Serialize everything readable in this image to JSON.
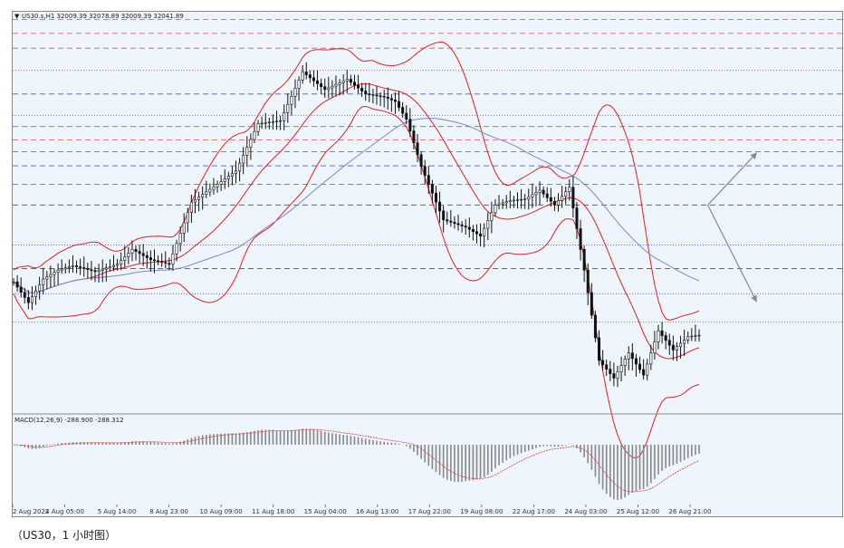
{
  "main_info": "US30.s,H1  32009.39 32078.89 32009.39 32041.89",
  "macd_info": "MACD(12,26,9) -288.900 -288.312",
  "caption": "（US30，1 小时图）",
  "colors": {
    "background": "#eef5fc",
    "candle": "#111111",
    "bollinger": "#e02020",
    "moving_average": "#7a86d8",
    "level_red": "#e05050",
    "level_blue": "#4a5ad8",
    "level_dark": "#555555",
    "projection_arrow": "#8a8a8a",
    "macd_histogram": "#888888",
    "macd_signal": "#d04040"
  },
  "chart_data": {
    "type": "line",
    "symbol": "US30.s",
    "timeframe": "H1",
    "ohlc_readout": {
      "open": 32009.39,
      "high": 32078.89,
      "low": 32009.39,
      "close": 32041.89
    },
    "x_tick_labels": [
      "2 Aug 2022",
      "4 Aug 05:00",
      "5 Aug 14:00",
      "8 Aug 23:00",
      "10 Aug 09:00",
      "11 Aug 18:00",
      "15 Aug 04:00",
      "16 Aug 13:00",
      "17 Aug 22:00",
      "19 Aug 08:00",
      "22 Aug 17:00",
      "24 Aug 03:00",
      "25 Aug 12:00",
      "26 Aug 21:00"
    ],
    "x_index_range": [
      0,
      185
    ],
    "ylim": [
      31900,
      34600
    ],
    "price_anchors": {
      "index": [
        0,
        4,
        8,
        12,
        16,
        22,
        28,
        32,
        37,
        42,
        48,
        55,
        60,
        66,
        72,
        78,
        84,
        90,
        95,
        100,
        103,
        106,
        110,
        116,
        122,
        126,
        130,
        134,
        138,
        142,
        146,
        150,
        154,
        158,
        162,
        166,
        170,
        174,
        178,
        182,
        185
      ],
      "close": [
        32780,
        32640,
        32800,
        32860,
        32890,
        32850,
        32900,
        33000,
        32930,
        32900,
        33320,
        33440,
        33530,
        33850,
        33870,
        34200,
        34080,
        34150,
        34050,
        34030,
        34000,
        33880,
        33560,
        33200,
        33150,
        33090,
        33300,
        33330,
        33340,
        33400,
        33300,
        33420,
        32860,
        32250,
        32130,
        32300,
        32150,
        32450,
        32320,
        32410,
        32420
      ]
    },
    "bollinger_period": 20,
    "bollinger_k": 2,
    "moving_average_period": 60,
    "horizontal_levels": [
      {
        "price": 34555,
        "color": "red",
        "style": "dashed"
      },
      {
        "price": 34460,
        "color": "red",
        "style": "dashed"
      },
      {
        "price": 34360,
        "color": "red",
        "style": "dashed"
      },
      {
        "price": 34210,
        "color": "red",
        "style": "dotted"
      },
      {
        "price": 34050,
        "color": "blue",
        "style": "dashed"
      },
      {
        "price": 33905,
        "color": "blue",
        "style": "dotted"
      },
      {
        "price": 33830,
        "color": "blue",
        "style": "dashed"
      },
      {
        "price": 33740,
        "color": "red",
        "style": "dashed"
      },
      {
        "price": 33660,
        "color": "blue",
        "style": "dashed"
      },
      {
        "price": 33565,
        "color": "blue",
        "style": "dashed"
      },
      {
        "price": 33440,
        "color": "blue",
        "style": "dashed"
      },
      {
        "price": 33300,
        "color": "dark",
        "style": "dashed"
      },
      {
        "price": 33030,
        "color": "blue",
        "style": "dotted"
      },
      {
        "price": 32870,
        "color": "dark",
        "style": "dashed"
      },
      {
        "price": 32700,
        "color": "blue",
        "style": "dotted"
      },
      {
        "price": 32510,
        "color": "blue",
        "style": "dotted"
      }
    ],
    "projection_arrows": [
      {
        "from": [
          180,
          33300
        ],
        "to": [
          187,
          33650
        ]
      },
      {
        "from": [
          180,
          33300
        ],
        "to": [
          187,
          32650
        ]
      }
    ],
    "macd": {
      "fast": 12,
      "slow": 26,
      "signal": 9,
      "value": -288.9,
      "signal_value": -288.312
    }
  }
}
